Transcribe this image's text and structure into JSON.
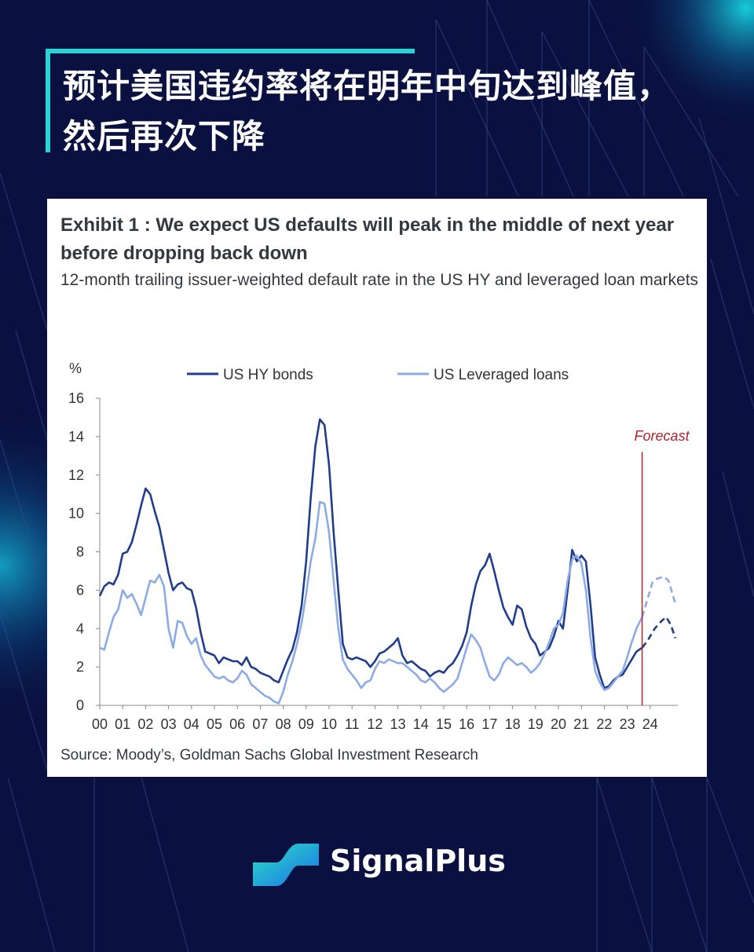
{
  "headline": {
    "line1": "预计美国违约率将在明年中旬达到峰值，",
    "line2": "然后再次下降"
  },
  "colors": {
    "background": "#0a1140",
    "accent": "#29d3d8",
    "hy": "#1f3d8c",
    "loans": "#8cabe6",
    "forecast": "#b0232d"
  },
  "exhibit": {
    "title": "Exhibit 1 : We expect US defaults will peak in the middle of next year before dropping back down",
    "subtitle": "12-month trailing issuer-weighted default rate in the US HY and leveraged loan markets",
    "source": "Source: Moody’s, Goldman Sachs Global Investment Research"
  },
  "chart_data": {
    "type": "line",
    "ylabel": "%",
    "ylim": [
      0,
      16
    ],
    "yticks": [
      "0",
      "2",
      "4",
      "6",
      "8",
      "10",
      "12",
      "14",
      "16"
    ],
    "xlim": [
      0,
      25
    ],
    "xticks": [
      "00",
      "01",
      "02",
      "03",
      "04",
      "05",
      "06",
      "07",
      "08",
      "09",
      "10",
      "11",
      "12",
      "13",
      "14",
      "15",
      "16",
      "17",
      "18",
      "19",
      "20",
      "21",
      "22",
      "23",
      "24"
    ],
    "forecast_label": "Forecast",
    "forecast_x": 23.65,
    "legend_position": "top",
    "series": [
      {
        "name": "US HY bonds",
        "actual": [
          [
            0,
            5.7
          ],
          [
            0.2,
            6.2
          ],
          [
            0.4,
            6.4
          ],
          [
            0.6,
            6.3
          ],
          [
            0.8,
            6.8
          ],
          [
            1.0,
            7.9
          ],
          [
            1.2,
            8.0
          ],
          [
            1.4,
            8.5
          ],
          [
            1.6,
            9.4
          ],
          [
            1.8,
            10.4
          ],
          [
            2.0,
            11.3
          ],
          [
            2.2,
            11.0
          ],
          [
            2.4,
            10.1
          ],
          [
            2.6,
            9.3
          ],
          [
            2.8,
            8.1
          ],
          [
            3.0,
            6.9
          ],
          [
            3.2,
            6.0
          ],
          [
            3.4,
            6.3
          ],
          [
            3.6,
            6.4
          ],
          [
            3.8,
            6.1
          ],
          [
            4.0,
            6.0
          ],
          [
            4.2,
            5.1
          ],
          [
            4.4,
            3.8
          ],
          [
            4.6,
            2.8
          ],
          [
            4.8,
            2.7
          ],
          [
            5.0,
            2.6
          ],
          [
            5.2,
            2.2
          ],
          [
            5.4,
            2.5
          ],
          [
            5.6,
            2.4
          ],
          [
            5.8,
            2.3
          ],
          [
            6.0,
            2.3
          ],
          [
            6.2,
            2.1
          ],
          [
            6.4,
            2.5
          ],
          [
            6.6,
            2.0
          ],
          [
            6.8,
            1.9
          ],
          [
            7.0,
            1.7
          ],
          [
            7.2,
            1.6
          ],
          [
            7.4,
            1.5
          ],
          [
            7.6,
            1.3
          ],
          [
            7.8,
            1.2
          ],
          [
            8.0,
            1.8
          ],
          [
            8.2,
            2.4
          ],
          [
            8.4,
            2.9
          ],
          [
            8.6,
            3.8
          ],
          [
            8.8,
            5.2
          ],
          [
            9.0,
            7.5
          ],
          [
            9.2,
            10.8
          ],
          [
            9.4,
            13.5
          ],
          [
            9.6,
            14.9
          ],
          [
            9.8,
            14.6
          ],
          [
            10.0,
            12.5
          ],
          [
            10.2,
            9.0
          ],
          [
            10.4,
            6.0
          ],
          [
            10.6,
            3.2
          ],
          [
            10.8,
            2.5
          ],
          [
            11.0,
            2.4
          ],
          [
            11.2,
            2.5
          ],
          [
            11.4,
            2.4
          ],
          [
            11.6,
            2.3
          ],
          [
            11.8,
            2.0
          ],
          [
            12.0,
            2.3
          ],
          [
            12.2,
            2.7
          ],
          [
            12.4,
            2.8
          ],
          [
            12.6,
            3.0
          ],
          [
            12.8,
            3.2
          ],
          [
            13.0,
            3.5
          ],
          [
            13.2,
            2.6
          ],
          [
            13.4,
            2.2
          ],
          [
            13.6,
            2.3
          ],
          [
            13.8,
            2.1
          ],
          [
            14.0,
            1.9
          ],
          [
            14.2,
            1.8
          ],
          [
            14.4,
            1.5
          ],
          [
            14.6,
            1.7
          ],
          [
            14.8,
            1.8
          ],
          [
            15.0,
            1.7
          ],
          [
            15.2,
            2.0
          ],
          [
            15.4,
            2.2
          ],
          [
            15.6,
            2.6
          ],
          [
            15.8,
            3.1
          ],
          [
            16.0,
            3.8
          ],
          [
            16.2,
            5.2
          ],
          [
            16.4,
            6.3
          ],
          [
            16.6,
            7.0
          ],
          [
            16.8,
            7.3
          ],
          [
            17.0,
            7.9
          ],
          [
            17.2,
            7.0
          ],
          [
            17.4,
            6.0
          ],
          [
            17.6,
            5.1
          ],
          [
            17.8,
            4.6
          ],
          [
            18.0,
            4.2
          ],
          [
            18.2,
            5.2
          ],
          [
            18.4,
            5.0
          ],
          [
            18.6,
            4.1
          ],
          [
            18.8,
            3.5
          ],
          [
            19.0,
            3.2
          ],
          [
            19.2,
            2.6
          ],
          [
            19.4,
            2.8
          ],
          [
            19.6,
            3.0
          ],
          [
            19.8,
            3.6
          ],
          [
            20.0,
            4.4
          ],
          [
            20.2,
            4.0
          ],
          [
            20.4,
            6.0
          ],
          [
            20.6,
            8.1
          ],
          [
            20.8,
            7.5
          ],
          [
            21.0,
            7.8
          ],
          [
            21.2,
            7.5
          ],
          [
            21.4,
            5.2
          ],
          [
            21.6,
            2.5
          ],
          [
            21.8,
            1.6
          ],
          [
            22.0,
            0.9
          ],
          [
            22.2,
            1.0
          ],
          [
            22.4,
            1.3
          ],
          [
            22.6,
            1.5
          ],
          [
            22.8,
            1.6
          ],
          [
            23.0,
            2.0
          ],
          [
            23.2,
            2.4
          ],
          [
            23.4,
            2.8
          ],
          [
            23.65,
            3.0
          ]
        ],
        "forecast": [
          [
            23.65,
            3.0
          ],
          [
            23.9,
            3.4
          ],
          [
            24.2,
            4.0
          ],
          [
            24.5,
            4.4
          ],
          [
            24.7,
            4.6
          ],
          [
            24.9,
            4.2
          ],
          [
            25.1,
            3.5
          ]
        ]
      },
      {
        "name": "US Leveraged loans",
        "actual": [
          [
            0,
            3.0
          ],
          [
            0.2,
            2.9
          ],
          [
            0.4,
            3.8
          ],
          [
            0.6,
            4.6
          ],
          [
            0.8,
            5.0
          ],
          [
            1.0,
            6.0
          ],
          [
            1.2,
            5.6
          ],
          [
            1.4,
            5.8
          ],
          [
            1.6,
            5.3
          ],
          [
            1.8,
            4.7
          ],
          [
            2.0,
            5.6
          ],
          [
            2.2,
            6.5
          ],
          [
            2.4,
            6.4
          ],
          [
            2.6,
            6.8
          ],
          [
            2.8,
            6.2
          ],
          [
            3.0,
            4.0
          ],
          [
            3.2,
            3.0
          ],
          [
            3.4,
            4.4
          ],
          [
            3.6,
            4.3
          ],
          [
            3.8,
            3.6
          ],
          [
            4.0,
            3.2
          ],
          [
            4.2,
            3.5
          ],
          [
            4.4,
            2.6
          ],
          [
            4.6,
            2.1
          ],
          [
            4.8,
            1.8
          ],
          [
            5.0,
            1.5
          ],
          [
            5.2,
            1.4
          ],
          [
            5.4,
            1.5
          ],
          [
            5.6,
            1.3
          ],
          [
            5.8,
            1.2
          ],
          [
            6.0,
            1.4
          ],
          [
            6.2,
            1.8
          ],
          [
            6.4,
            1.6
          ],
          [
            6.6,
            1.1
          ],
          [
            6.8,
            0.9
          ],
          [
            7.0,
            0.7
          ],
          [
            7.2,
            0.5
          ],
          [
            7.4,
            0.4
          ],
          [
            7.6,
            0.2
          ],
          [
            7.8,
            0.1
          ],
          [
            8.0,
            0.7
          ],
          [
            8.2,
            1.6
          ],
          [
            8.4,
            2.3
          ],
          [
            8.6,
            3.2
          ],
          [
            8.8,
            4.3
          ],
          [
            9.0,
            5.8
          ],
          [
            9.2,
            7.5
          ],
          [
            9.4,
            8.7
          ],
          [
            9.6,
            10.6
          ],
          [
            9.8,
            10.5
          ],
          [
            10.0,
            9.0
          ],
          [
            10.2,
            6.5
          ],
          [
            10.4,
            4.0
          ],
          [
            10.6,
            2.4
          ],
          [
            10.8,
            1.9
          ],
          [
            11.0,
            1.6
          ],
          [
            11.2,
            1.3
          ],
          [
            11.4,
            0.9
          ],
          [
            11.6,
            1.2
          ],
          [
            11.8,
            1.3
          ],
          [
            12.0,
            1.9
          ],
          [
            12.2,
            2.3
          ],
          [
            12.4,
            2.2
          ],
          [
            12.6,
            2.4
          ],
          [
            12.8,
            2.3
          ],
          [
            13.0,
            2.2
          ],
          [
            13.2,
            2.2
          ],
          [
            13.4,
            2.0
          ],
          [
            13.6,
            1.8
          ],
          [
            13.8,
            1.6
          ],
          [
            14.0,
            1.3
          ],
          [
            14.2,
            1.2
          ],
          [
            14.4,
            1.4
          ],
          [
            14.6,
            1.2
          ],
          [
            14.8,
            0.9
          ],
          [
            15.0,
            0.7
          ],
          [
            15.2,
            0.9
          ],
          [
            15.4,
            1.1
          ],
          [
            15.6,
            1.4
          ],
          [
            15.8,
            2.2
          ],
          [
            16.0,
            3.0
          ],
          [
            16.2,
            3.7
          ],
          [
            16.4,
            3.4
          ],
          [
            16.6,
            3.0
          ],
          [
            16.8,
            2.2
          ],
          [
            17.0,
            1.5
          ],
          [
            17.2,
            1.3
          ],
          [
            17.4,
            1.6
          ],
          [
            17.6,
            2.2
          ],
          [
            17.8,
            2.5
          ],
          [
            18.0,
            2.3
          ],
          [
            18.2,
            2.1
          ],
          [
            18.4,
            2.2
          ],
          [
            18.6,
            2.0
          ],
          [
            18.8,
            1.7
          ],
          [
            19.0,
            1.9
          ],
          [
            19.2,
            2.2
          ],
          [
            19.4,
            2.7
          ],
          [
            19.6,
            3.3
          ],
          [
            19.8,
            4.0
          ],
          [
            20.0,
            4.2
          ],
          [
            20.2,
            4.8
          ],
          [
            20.4,
            6.5
          ],
          [
            20.6,
            7.6
          ],
          [
            20.8,
            7.8
          ],
          [
            21.0,
            7.4
          ],
          [
            21.2,
            6.0
          ],
          [
            21.4,
            3.5
          ],
          [
            21.6,
            1.8
          ],
          [
            21.8,
            1.2
          ],
          [
            22.0,
            0.8
          ],
          [
            22.2,
            0.9
          ],
          [
            22.4,
            1.2
          ],
          [
            22.6,
            1.5
          ],
          [
            22.8,
            1.8
          ],
          [
            23.0,
            2.5
          ],
          [
            23.2,
            3.3
          ],
          [
            23.4,
            4.0
          ],
          [
            23.65,
            4.6
          ]
        ],
        "forecast": [
          [
            23.65,
            4.6
          ],
          [
            23.9,
            5.6
          ],
          [
            24.1,
            6.4
          ],
          [
            24.3,
            6.6
          ],
          [
            24.6,
            6.7
          ],
          [
            24.8,
            6.5
          ],
          [
            25.1,
            5.3
          ]
        ]
      }
    ]
  },
  "brand": {
    "name": "SignalPlus"
  }
}
